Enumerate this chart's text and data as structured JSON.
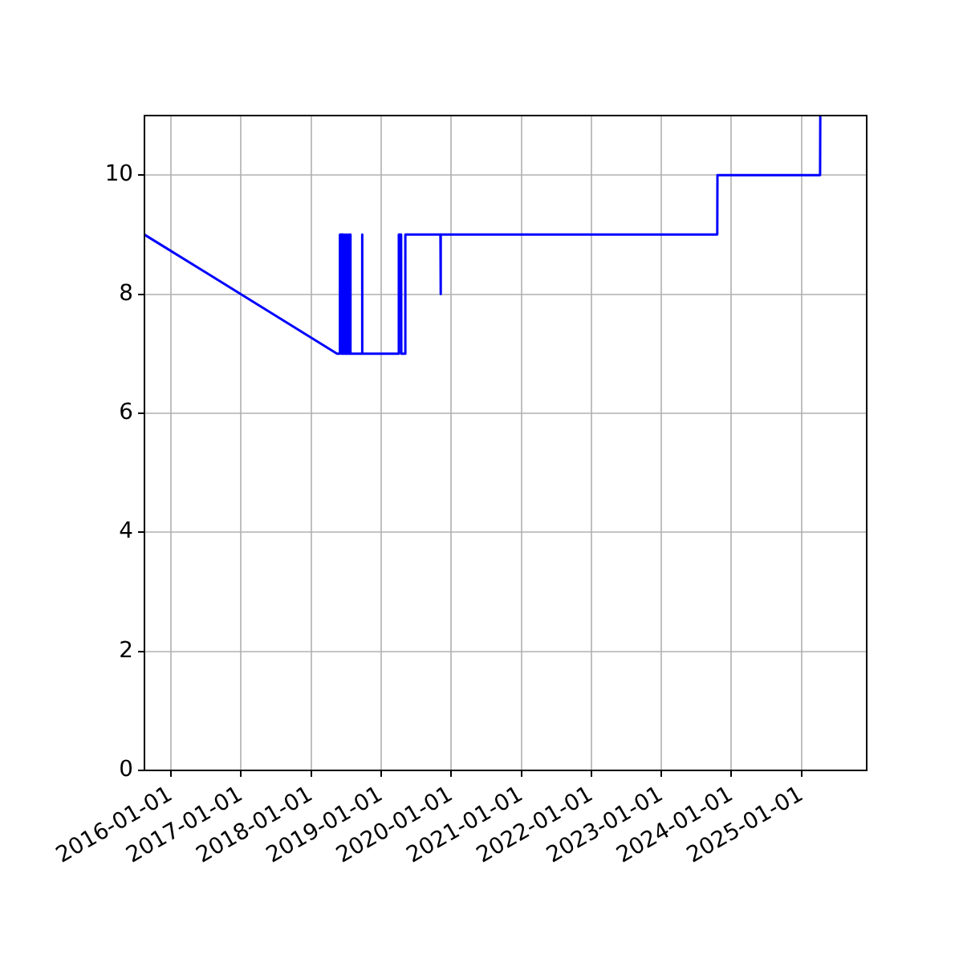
{
  "chart_data": {
    "type": "line",
    "x": [
      "2015-08-16",
      "2018-05-16",
      "2018-05-30",
      "2018-05-31",
      "2018-06-04",
      "2018-06-05",
      "2018-06-09",
      "2018-06-10",
      "2018-06-14",
      "2018-06-15",
      "2018-06-19",
      "2018-06-20",
      "2018-06-24",
      "2018-06-25",
      "2018-06-29",
      "2018-06-30",
      "2018-07-03",
      "2018-07-04",
      "2018-07-07",
      "2018-07-08",
      "2018-07-12",
      "2018-07-13",
      "2018-07-16",
      "2018-07-17",
      "2018-07-21",
      "2018-07-22",
      "2018-07-24",
      "2018-07-25",
      "2018-07-26",
      "2018-09-21",
      "2018-09-22",
      "2018-09-25",
      "2018-09-26",
      "2019-04-02",
      "2019-04-03",
      "2019-04-15",
      "2019-04-16",
      "2019-05-06",
      "2019-05-07",
      "2019-11-06",
      "2019-11-07",
      "2019-11-08",
      "2023-10-19",
      "2023-10-20",
      "2025-04-07",
      "2025-04-08"
    ],
    "series": [
      {
        "color": "#0000ff",
        "values": [
          9,
          7,
          7,
          9,
          9,
          7,
          7,
          9,
          9,
          7,
          7,
          9,
          9,
          7,
          7,
          9,
          9,
          7,
          7,
          9,
          9,
          7,
          7,
          9,
          9,
          7,
          7,
          9,
          7,
          7,
          9,
          9,
          7,
          7,
          9,
          9,
          7,
          7,
          9,
          9,
          8,
          9,
          9,
          10,
          10,
          11
        ]
      }
    ],
    "xlim": [
      "2015-08-16",
      "2025-12-06"
    ],
    "xticks": [
      "2016-01-01",
      "2017-01-01",
      "2018-01-01",
      "2019-01-01",
      "2020-01-01",
      "2021-01-01",
      "2022-01-01",
      "2023-01-01",
      "2024-01-01",
      "2025-01-01"
    ],
    "ylim": [
      0,
      11
    ],
    "yticks": [
      0,
      2,
      4,
      6,
      8,
      10
    ],
    "grid": true
  }
}
